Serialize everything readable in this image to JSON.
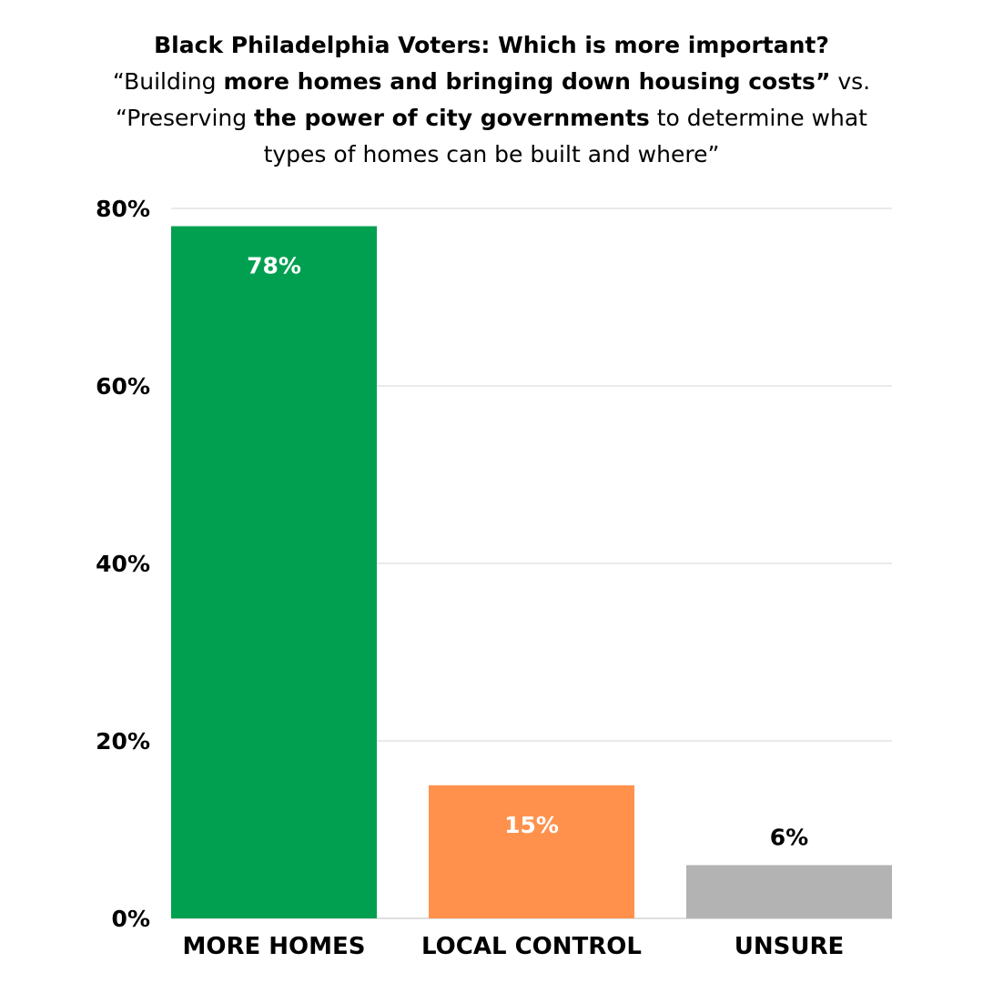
{
  "chart_data": {
    "type": "bar",
    "title": "Black Philadelphia Voters: Which is more important?",
    "subtitle_lines": [
      {
        "pre": "“Building ",
        "bold": "more homes and bringing down housing costs”",
        "post": " vs."
      },
      {
        "pre": "“Preserving ",
        "bold": "the power of city governments",
        "post": " to determine what"
      },
      {
        "pre": "types of homes can be built and where”",
        "bold": "",
        "post": ""
      }
    ],
    "categories": [
      "MORE HOMES",
      "LOCAL CONTROL",
      "UNSURE"
    ],
    "values": [
      78,
      15,
      6
    ],
    "value_labels": [
      "78%",
      "15%",
      "6%"
    ],
    "bar_colors": [
      "#00a050",
      "#ff914d",
      "#b3b3b3"
    ],
    "label_colors": [
      "#ffffff",
      "#ffffff",
      "#000000"
    ],
    "label_position": [
      "inside",
      "inside",
      "above"
    ],
    "ylim": [
      0,
      80
    ],
    "yticks": [
      0,
      20,
      40,
      60,
      80
    ],
    "ytick_labels": [
      "0%",
      "20%",
      "40%",
      "60%",
      "80%"
    ],
    "grid": true,
    "xlabel": "",
    "ylabel": ""
  }
}
